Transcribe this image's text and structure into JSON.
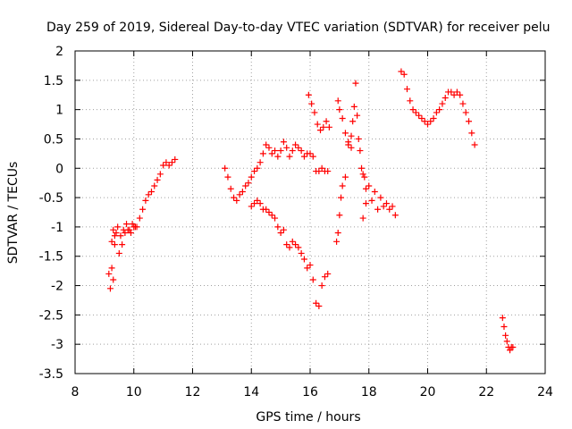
{
  "chart_data": {
    "type": "scatter",
    "title": "Day 259 of 2019, Sidereal Day-to-day VTEC variation (SDTVAR) for receiver pelu",
    "xlabel": "GPS time / hours",
    "ylabel": "SDTVAR / TECUs",
    "xlim": [
      8,
      24
    ],
    "ylim": [
      -3.5,
      2
    ],
    "xticks": [
      8,
      10,
      12,
      14,
      16,
      18,
      20,
      22,
      24
    ],
    "yticks": [
      -3.5,
      -3,
      -2.5,
      -2,
      -1.5,
      -1,
      -0.5,
      0,
      0.5,
      1,
      1.5,
      2
    ],
    "xtick_labels": [
      "8",
      "10",
      "12",
      "14",
      "16",
      "18",
      "20",
      "22",
      "24"
    ],
    "ytick_labels": [
      "-3.5",
      "-3",
      "-2.5",
      "-2",
      "-1.5",
      "-1",
      "-0.5",
      "0",
      "0.5",
      "1",
      "1.5",
      "2"
    ],
    "grid": true,
    "marker": "plus",
    "marker_color": "#ff0000",
    "series": [
      {
        "name": "s1",
        "x": [
          9.15,
          9.2,
          9.25,
          9.3,
          9.35,
          9.4,
          9.5,
          9.6,
          9.7,
          9.8,
          9.9,
          10.0,
          10.1,
          10.2,
          10.3,
          10.4,
          10.5,
          10.6,
          10.7,
          10.8,
          10.9,
          11.0,
          11.1,
          11.2,
          11.3,
          11.4
        ],
        "y": [
          -1.8,
          -2.05,
          -1.7,
          -1.9,
          -1.3,
          -1.1,
          -1.45,
          -1.3,
          -1.1,
          -1.05,
          -1.1,
          -1.0,
          -1.0,
          -0.85,
          -0.7,
          -0.55,
          -0.45,
          -0.4,
          -0.3,
          -0.2,
          -0.1,
          0.05,
          0.1,
          0.05,
          0.1,
          0.15
        ]
      },
      {
        "name": "s1-upper",
        "x": [
          9.25,
          9.3,
          9.35,
          9.45,
          9.55,
          9.65,
          9.75,
          9.85,
          9.95,
          10.05
        ],
        "y": [
          -1.25,
          -1.05,
          -1.15,
          -1.0,
          -1.15,
          -1.05,
          -0.95,
          -1.05,
          -0.95,
          -1.0
        ]
      },
      {
        "name": "s2",
        "x": [
          13.1,
          13.2,
          13.3,
          13.4,
          13.5,
          13.6,
          13.7,
          13.8,
          13.9,
          14.0,
          14.1,
          14.2,
          14.3,
          14.4,
          14.5,
          14.6,
          14.7,
          14.8,
          14.9,
          15.0,
          15.1,
          15.2,
          15.3,
          15.4,
          15.5,
          15.6,
          15.7,
          15.8,
          15.9,
          16.0,
          16.1,
          16.2,
          16.3,
          16.4,
          16.5,
          16.6
        ],
        "y": [
          0.0,
          -0.15,
          -0.35,
          -0.5,
          -0.55,
          -0.45,
          -0.4,
          -0.3,
          -0.25,
          -0.15,
          -0.05,
          0.0,
          0.1,
          0.25,
          0.4,
          0.35,
          0.25,
          0.3,
          0.2,
          0.3,
          0.45,
          0.35,
          0.2,
          0.3,
          0.4,
          0.35,
          0.3,
          0.2,
          0.25,
          0.25,
          0.2,
          -0.05,
          -0.05,
          0.0,
          -0.05,
          -0.05
        ]
      },
      {
        "name": "s3",
        "x": [
          14.0,
          14.1,
          14.2,
          14.3,
          14.4,
          14.5,
          14.6,
          14.7,
          14.8,
          14.9,
          15.0,
          15.1,
          15.2,
          15.3,
          15.4,
          15.5,
          15.6,
          15.7,
          15.8,
          15.9,
          16.0,
          16.1,
          16.2,
          16.3,
          16.4,
          16.5,
          16.6
        ],
        "y": [
          -0.65,
          -0.6,
          -0.55,
          -0.6,
          -0.7,
          -0.7,
          -0.75,
          -0.8,
          -0.85,
          -1.0,
          -1.1,
          -1.05,
          -1.3,
          -1.35,
          -1.25,
          -1.3,
          -1.35,
          -1.45,
          -1.55,
          -1.7,
          -1.65,
          -1.9,
          -2.3,
          -2.35,
          -2.0,
          -1.85,
          -1.8
        ]
      },
      {
        "name": "s4",
        "x": [
          15.95,
          16.05,
          16.15,
          16.25,
          16.35,
          16.45,
          16.55,
          16.65
        ],
        "y": [
          1.25,
          1.1,
          0.95,
          0.75,
          0.65,
          0.7,
          0.8,
          0.7
        ]
      },
      {
        "name": "s5",
        "x": [
          16.9,
          16.95,
          17.0,
          17.05,
          17.1,
          17.2,
          17.3,
          17.4,
          17.45,
          17.5,
          17.55,
          17.6,
          17.65,
          17.7,
          17.75,
          17.8,
          17.85,
          17.9
        ],
        "y": [
          -1.25,
          -1.1,
          -0.8,
          -0.5,
          -0.3,
          -0.15,
          0.4,
          0.55,
          0.8,
          1.05,
          1.45,
          0.9,
          0.5,
          0.3,
          0.0,
          -0.1,
          -0.15,
          -0.35
        ]
      },
      {
        "name": "s5-b",
        "x": [
          16.95,
          17.0,
          17.1,
          17.2,
          17.3,
          17.4
        ],
        "y": [
          1.15,
          1.0,
          0.85,
          0.6,
          0.45,
          0.35
        ]
      },
      {
        "name": "s6",
        "x": [
          17.8,
          17.9,
          18.0,
          18.1,
          18.2,
          18.3,
          18.4,
          18.5,
          18.6,
          18.7,
          18.8,
          18.9
        ],
        "y": [
          -0.85,
          -0.6,
          -0.3,
          -0.55,
          -0.4,
          -0.7,
          -0.5,
          -0.65,
          -0.6,
          -0.7,
          -0.65,
          -0.8
        ]
      },
      {
        "name": "s7",
        "x": [
          19.1,
          19.2,
          19.3,
          19.4,
          19.5,
          19.6,
          19.7,
          19.8,
          19.9,
          20.0,
          20.1,
          20.2,
          20.3,
          20.4,
          20.5,
          20.6,
          20.7,
          20.8,
          20.9,
          21.0,
          21.1,
          21.2,
          21.3,
          21.4,
          21.5,
          21.6
        ],
        "y": [
          1.65,
          1.6,
          1.35,
          1.15,
          1.0,
          0.95,
          0.9,
          0.85,
          0.8,
          0.75,
          0.8,
          0.85,
          0.95,
          1.0,
          1.1,
          1.2,
          1.3,
          1.3,
          1.25,
          1.3,
          1.25,
          1.1,
          0.95,
          0.8,
          0.6,
          0.4
        ]
      },
      {
        "name": "s8",
        "x": [
          22.55,
          22.6,
          22.65,
          22.7,
          22.75,
          22.8,
          22.85,
          22.9
        ],
        "y": [
          -2.55,
          -2.7,
          -2.85,
          -2.95,
          -3.05,
          -3.1,
          -3.05,
          -3.05
        ]
      }
    ]
  }
}
